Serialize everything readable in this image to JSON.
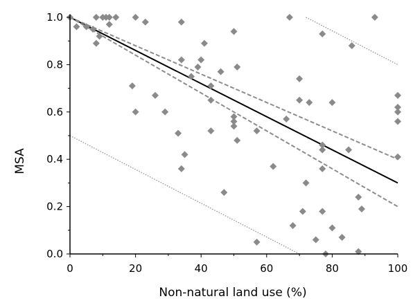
{
  "chart_data": {
    "type": "scatter",
    "title": "",
    "xlabel": "Non-natural land use (%)",
    "ylabel": "MSA",
    "xlim": [
      0,
      100
    ],
    "ylim": [
      0,
      1
    ],
    "x_ticks": [
      0,
      20,
      40,
      60,
      80,
      100
    ],
    "x_tick_labels": [
      "0",
      "20",
      "40",
      "60",
      "80",
      "100"
    ],
    "y_ticks": [
      0,
      0.2,
      0.4,
      0.6,
      0.8,
      1.0
    ],
    "y_tick_labels": [
      "0.0",
      "0.2",
      "0.4",
      "0.6",
      "0.8",
      "1.0"
    ],
    "grid": false,
    "legend": "none",
    "colors": {
      "points": "#8a8a8a",
      "regression": "#000000",
      "confidence": "#8c8c8c",
      "prediction": "#8c8c8c",
      "axis": "#000000"
    },
    "points": [
      {
        "x": 0,
        "y": 1.0
      },
      {
        "x": 2,
        "y": 0.96
      },
      {
        "x": 5,
        "y": 0.96
      },
      {
        "x": 7,
        "y": 0.95
      },
      {
        "x": 8,
        "y": 1.0
      },
      {
        "x": 8,
        "y": 0.89
      },
      {
        "x": 9,
        "y": 0.92
      },
      {
        "x": 10,
        "y": 1.0
      },
      {
        "x": 11,
        "y": 1.0
      },
      {
        "x": 12,
        "y": 1.0
      },
      {
        "x": 12,
        "y": 0.97
      },
      {
        "x": 14,
        "y": 1.0
      },
      {
        "x": 19,
        "y": 0.71
      },
      {
        "x": 20,
        "y": 1.0
      },
      {
        "x": 20,
        "y": 0.6
      },
      {
        "x": 23,
        "y": 0.98
      },
      {
        "x": 26,
        "y": 0.67
      },
      {
        "x": 29,
        "y": 0.6
      },
      {
        "x": 33,
        "y": 0.51
      },
      {
        "x": 34,
        "y": 0.98
      },
      {
        "x": 34,
        "y": 0.82
      },
      {
        "x": 34,
        "y": 0.36
      },
      {
        "x": 35,
        "y": 0.42
      },
      {
        "x": 37,
        "y": 0.75
      },
      {
        "x": 39,
        "y": 0.79
      },
      {
        "x": 40,
        "y": 0.82
      },
      {
        "x": 41,
        "y": 0.89
      },
      {
        "x": 43,
        "y": 0.71
      },
      {
        "x": 43,
        "y": 0.65
      },
      {
        "x": 43,
        "y": 0.52
      },
      {
        "x": 46,
        "y": 0.77
      },
      {
        "x": 47,
        "y": 0.26
      },
      {
        "x": 50,
        "y": 0.94
      },
      {
        "x": 50,
        "y": 0.58
      },
      {
        "x": 50,
        "y": 0.56
      },
      {
        "x": 50,
        "y": 0.54
      },
      {
        "x": 51,
        "y": 0.79
      },
      {
        "x": 51,
        "y": 0.48
      },
      {
        "x": 57,
        "y": 0.52
      },
      {
        "x": 57,
        "y": 0.05
      },
      {
        "x": 62,
        "y": 0.37
      },
      {
        "x": 66,
        "y": 0.57
      },
      {
        "x": 67,
        "y": 1.0
      },
      {
        "x": 68,
        "y": 0.12
      },
      {
        "x": 70,
        "y": 0.74
      },
      {
        "x": 70,
        "y": 0.65
      },
      {
        "x": 71,
        "y": 0.18
      },
      {
        "x": 72,
        "y": 0.3
      },
      {
        "x": 73,
        "y": 0.64
      },
      {
        "x": 75,
        "y": 0.06
      },
      {
        "x": 77,
        "y": 0.93
      },
      {
        "x": 77,
        "y": 0.46
      },
      {
        "x": 77,
        "y": 0.44
      },
      {
        "x": 77,
        "y": 0.36
      },
      {
        "x": 77,
        "y": 0.18
      },
      {
        "x": 78,
        "y": 0.0
      },
      {
        "x": 80,
        "y": 0.64
      },
      {
        "x": 80,
        "y": 0.11
      },
      {
        "x": 83,
        "y": 0.07
      },
      {
        "x": 85,
        "y": 0.44
      },
      {
        "x": 86,
        "y": 0.88
      },
      {
        "x": 88,
        "y": 0.24
      },
      {
        "x": 88,
        "y": 0.01
      },
      {
        "x": 89,
        "y": 0.19
      },
      {
        "x": 93,
        "y": 1.0
      },
      {
        "x": 100,
        "y": 0.67
      },
      {
        "x": 100,
        "y": 0.62
      },
      {
        "x": 100,
        "y": 0.6
      },
      {
        "x": 100,
        "y": 0.56
      },
      {
        "x": 100,
        "y": 0.41
      }
    ],
    "lines": [
      {
        "role": "regression",
        "style": "solid",
        "x": [
          0,
          100
        ],
        "y": [
          1.0,
          0.3
        ]
      },
      {
        "role": "confidence-upper",
        "style": "dashed",
        "x": [
          0,
          100
        ],
        "y": [
          1.0,
          0.4
        ]
      },
      {
        "role": "confidence-lower",
        "style": "dashed",
        "x": [
          0,
          100
        ],
        "y": [
          1.0,
          0.2
        ]
      },
      {
        "role": "prediction-upper",
        "style": "dotted",
        "x": [
          72,
          100
        ],
        "y": [
          1.0,
          0.8
        ]
      },
      {
        "role": "prediction-lower",
        "style": "dotted",
        "x": [
          0,
          70
        ],
        "y": [
          0.5,
          0.0
        ]
      }
    ]
  }
}
